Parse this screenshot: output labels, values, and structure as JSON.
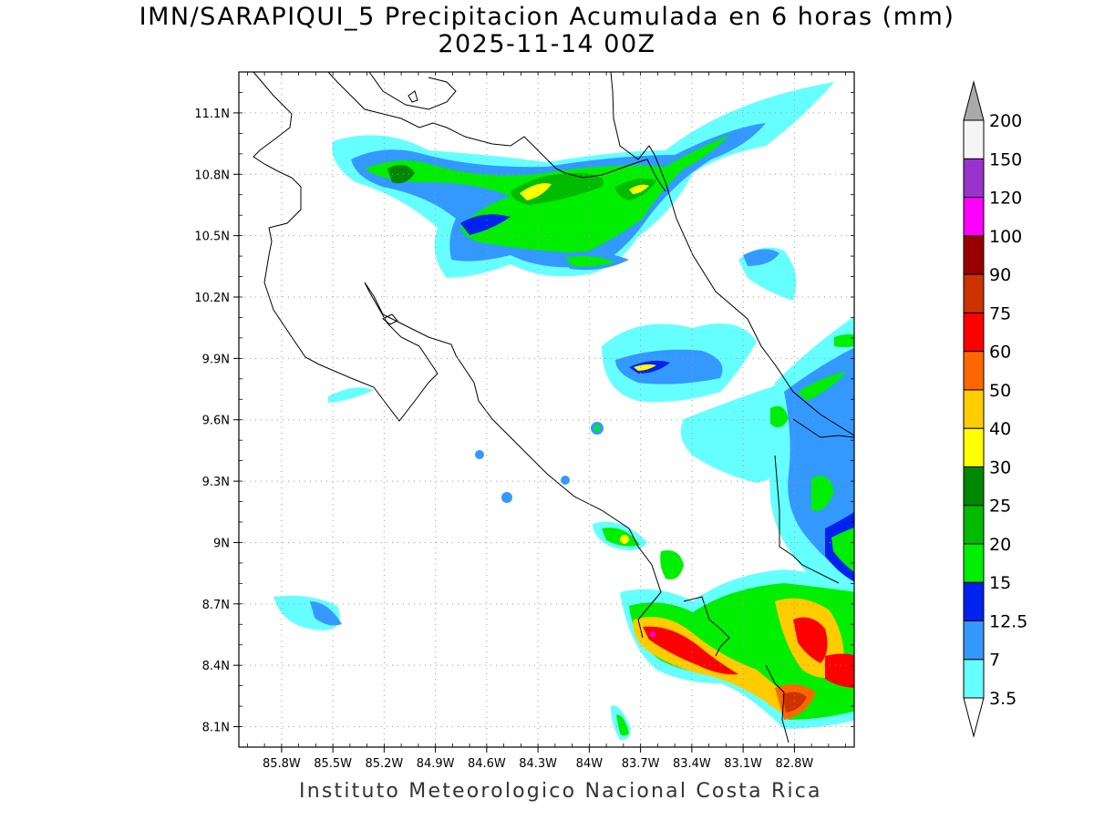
{
  "title": {
    "line1": "IMN/SARAPIQUI_5 Precipitacion Acumulada en 6 horas (mm)",
    "line2": "2025-11-14 00Z"
  },
  "credit": "Instituto Meteorologico Nacional Costa Rica",
  "map": {
    "lon_range": [
      -86.05,
      -82.45
    ],
    "lat_range": [
      8.0,
      11.3
    ],
    "x_ticks": [
      "85.8W",
      "85.5W",
      "85.2W",
      "84.9W",
      "84.6W",
      "84.3W",
      "84W",
      "83.7W",
      "83.4W",
      "83.1W",
      "82.8W"
    ],
    "x_tick_values": [
      -85.8,
      -85.5,
      -85.2,
      -84.9,
      -84.6,
      -84.3,
      -84.0,
      -83.7,
      -83.4,
      -83.1,
      -82.8
    ],
    "y_ticks": [
      "8.1N",
      "8.4N",
      "8.7N",
      "9N",
      "9.3N",
      "9.6N",
      "9.9N",
      "10.2N",
      "10.5N",
      "10.8N",
      "11.1N"
    ],
    "y_tick_values": [
      8.1,
      8.4,
      8.7,
      9.0,
      9.3,
      9.6,
      9.9,
      10.2,
      10.5,
      10.8,
      11.1
    ],
    "grid": "dotted"
  },
  "colorbar": {
    "labels": [
      "3.5",
      "7",
      "12.5",
      "15",
      "20",
      "25",
      "30",
      "40",
      "50",
      "60",
      "75",
      "90",
      "100",
      "120",
      "150",
      "200"
    ],
    "colors": [
      "#66ffff",
      "#3399ff",
      "#0022ee",
      "#00ee00",
      "#00bb00",
      "#008800",
      "#ffff00",
      "#ffcc00",
      "#ff6600",
      "#ff0000",
      "#cc3300",
      "#990000",
      "#ff00ff",
      "#9933cc",
      "#f5f5f5",
      "#aaaaaa"
    ],
    "orientation": "vertical-right"
  }
}
